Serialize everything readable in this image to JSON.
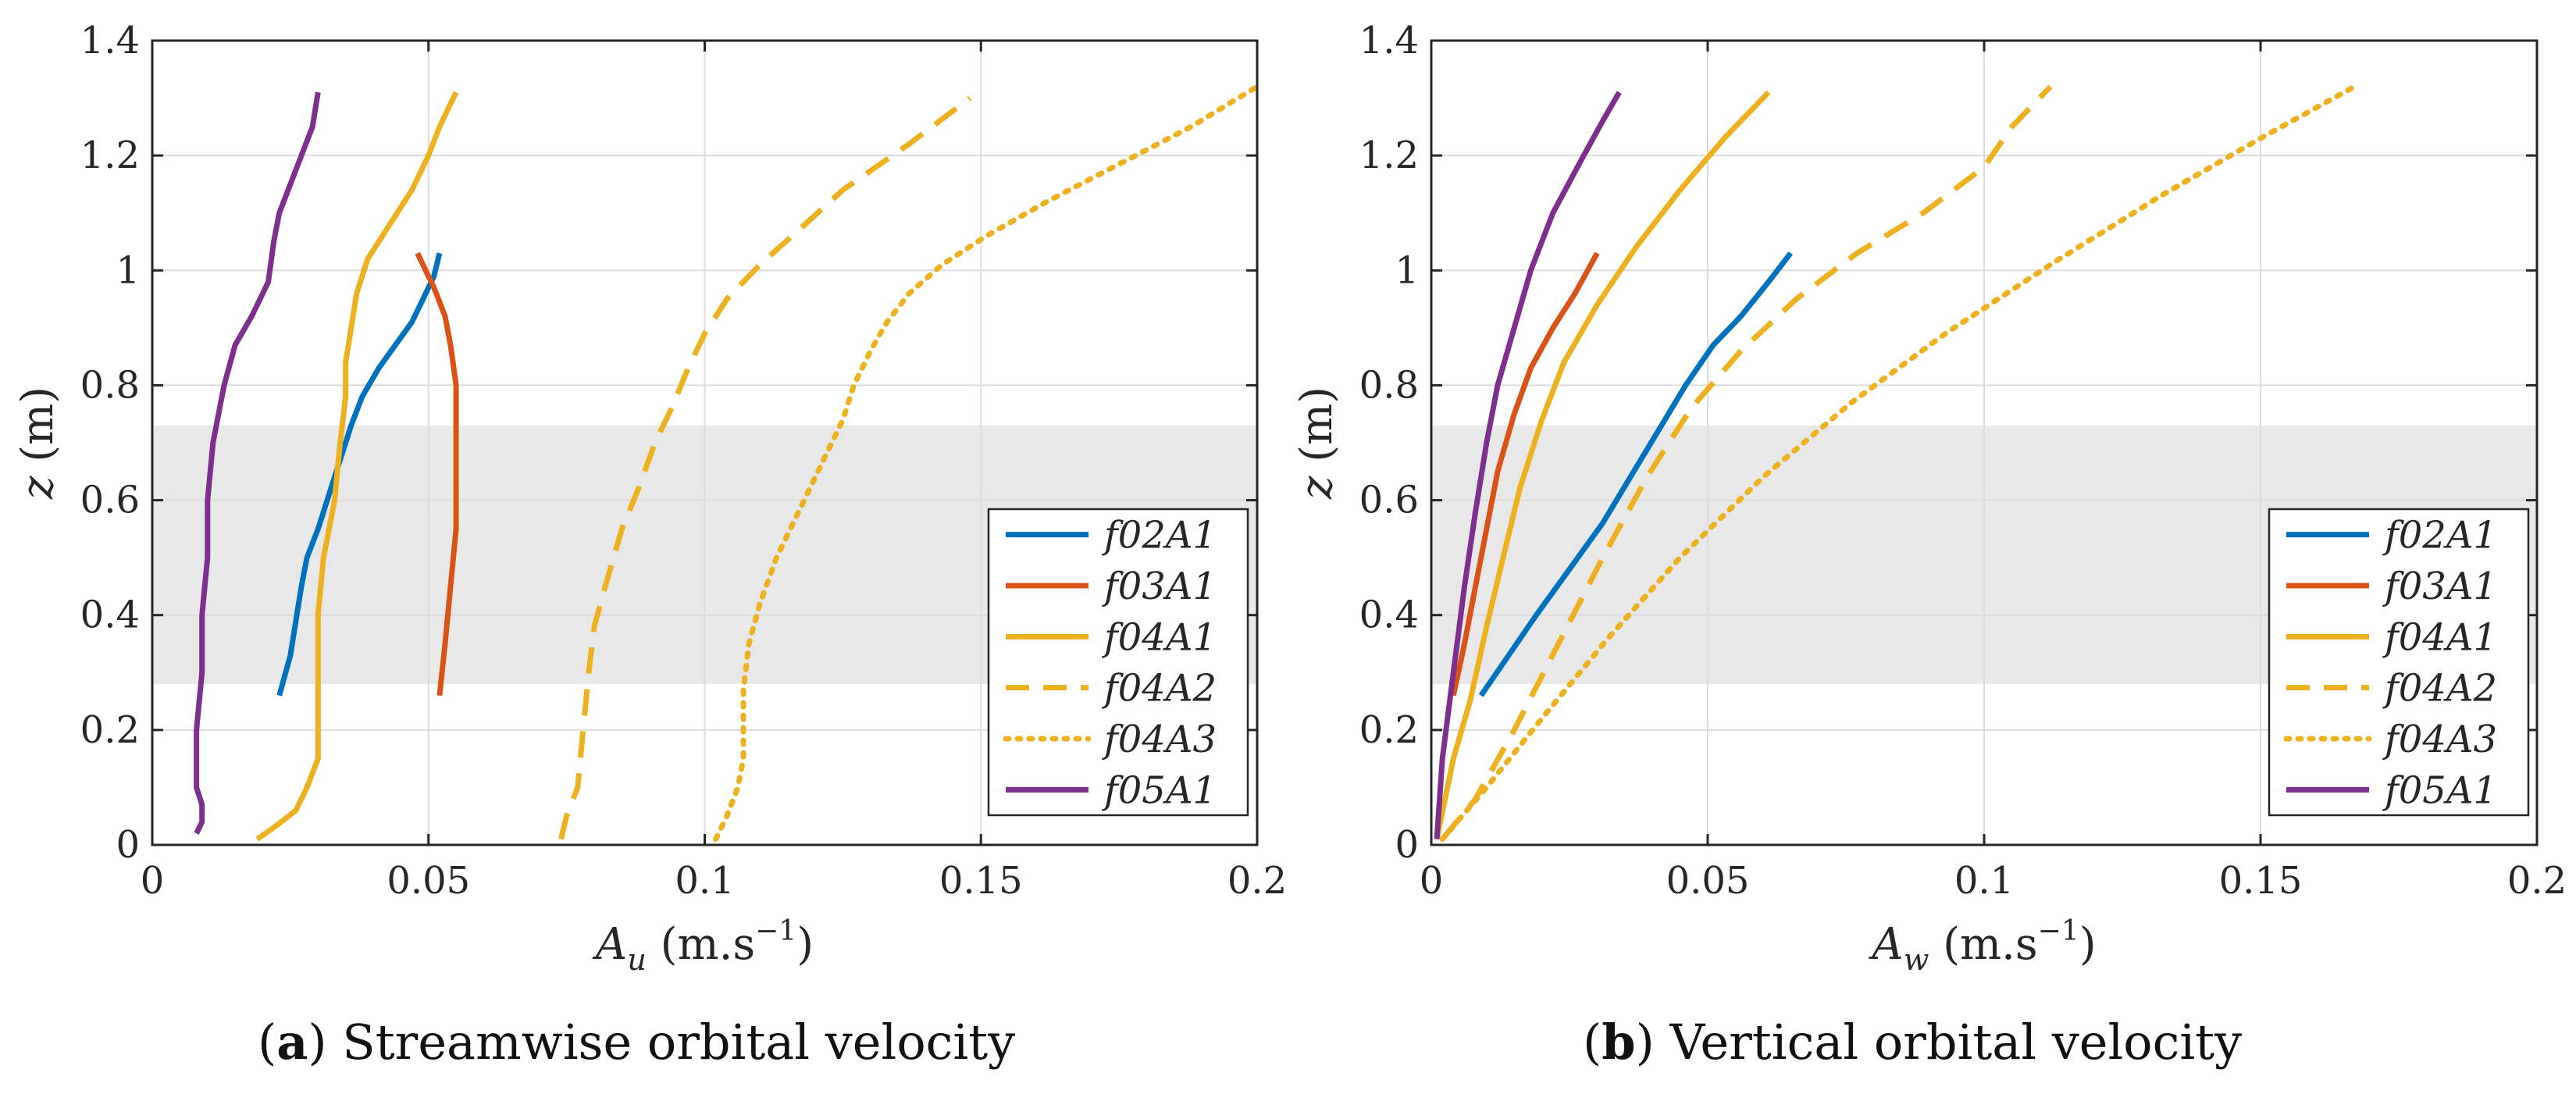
{
  "captions": [
    {
      "tag": "a",
      "text": "Streamwise orbital velocity"
    },
    {
      "tag": "b",
      "text": "Vertical orbital velocity"
    }
  ],
  "colors": {
    "f02A1": "#0072BD",
    "f03A1": "#D95319",
    "f04A1": "#EDB120",
    "f05A1": "#7E2F8E",
    "shade": "#e8e8e8",
    "grid": "#dcdcdc",
    "axis": "#262626"
  },
  "chart_data": [
    {
      "type": "line",
      "title": "",
      "xlabel": "A_u (m.s^-1)",
      "ylabel": "z (m)",
      "xlim": [
        0,
        0.2
      ],
      "ylim": [
        0,
        1.4
      ],
      "xticks": [
        "0",
        "0.05",
        "0.1",
        "0.15",
        "0.2"
      ],
      "yticks": [
        "0",
        "0.2",
        "0.4",
        "0.6",
        "0.8",
        "1",
        "1.2",
        "1.4"
      ],
      "shaded_band": [
        0.28,
        0.73
      ],
      "grid": true,
      "legend_position": "bottom-right",
      "series": [
        {
          "name": "f02A1",
          "style": "solid",
          "color": "#0072BD",
          "x": [
            0.023,
            0.025,
            0.026,
            0.027,
            0.028,
            0.03,
            0.032,
            0.034,
            0.036,
            0.038,
            0.041,
            0.044,
            0.047,
            0.049,
            0.051,
            0.052
          ],
          "y": [
            0.26,
            0.33,
            0.39,
            0.45,
            0.5,
            0.55,
            0.61,
            0.67,
            0.73,
            0.78,
            0.83,
            0.87,
            0.91,
            0.95,
            0.99,
            1.03
          ]
        },
        {
          "name": "f03A1",
          "style": "solid",
          "color": "#D95319",
          "x": [
            0.052,
            0.053,
            0.054,
            0.055,
            0.055,
            0.055,
            0.055,
            0.055,
            0.054,
            0.053,
            0.051,
            0.048
          ],
          "y": [
            0.26,
            0.35,
            0.45,
            0.55,
            0.6,
            0.65,
            0.72,
            0.8,
            0.87,
            0.92,
            0.97,
            1.03
          ]
        },
        {
          "name": "f04A1",
          "style": "solid",
          "color": "#EDB120",
          "x": [
            0.019,
            0.022,
            0.026,
            0.028,
            0.03,
            0.03,
            0.03,
            0.03,
            0.031,
            0.032,
            0.033,
            0.034,
            0.035,
            0.035,
            0.036,
            0.037,
            0.039,
            0.043,
            0.047,
            0.05,
            0.052,
            0.055
          ],
          "y": [
            0.01,
            0.03,
            0.06,
            0.1,
            0.15,
            0.2,
            0.3,
            0.4,
            0.5,
            0.55,
            0.6,
            0.7,
            0.78,
            0.84,
            0.9,
            0.96,
            1.02,
            1.08,
            1.14,
            1.2,
            1.25,
            1.31
          ]
        },
        {
          "name": "f04A2",
          "style": "dashed",
          "color": "#EDB120",
          "x": [
            0.074,
            0.075,
            0.077,
            0.078,
            0.079,
            0.08,
            0.082,
            0.085,
            0.088,
            0.091,
            0.094,
            0.097,
            0.1,
            0.104,
            0.11,
            0.117,
            0.125,
            0.137,
            0.148
          ],
          "y": [
            0.01,
            0.05,
            0.1,
            0.2,
            0.3,
            0.38,
            0.45,
            0.55,
            0.62,
            0.7,
            0.76,
            0.83,
            0.89,
            0.95,
            1.01,
            1.07,
            1.14,
            1.22,
            1.3
          ]
        },
        {
          "name": "f04A3",
          "style": "dotted",
          "color": "#EDB120",
          "x": [
            0.102,
            0.104,
            0.106,
            0.107,
            0.107,
            0.107,
            0.108,
            0.11,
            0.113,
            0.116,
            0.119,
            0.122,
            0.125,
            0.127,
            0.13,
            0.133,
            0.137,
            0.143,
            0.151,
            0.162,
            0.174,
            0.188,
            0.2
          ],
          "y": [
            0.01,
            0.05,
            0.1,
            0.15,
            0.2,
            0.27,
            0.35,
            0.42,
            0.5,
            0.56,
            0.62,
            0.68,
            0.74,
            0.8,
            0.86,
            0.91,
            0.96,
            1.01,
            1.06,
            1.12,
            1.18,
            1.25,
            1.32
          ]
        },
        {
          "name": "f05A1",
          "style": "solid",
          "color": "#7E2F8E",
          "x": [
            0.008,
            0.009,
            0.009,
            0.008,
            0.008,
            0.008,
            0.009,
            0.009,
            0.01,
            0.01,
            0.011,
            0.013,
            0.015,
            0.018,
            0.021,
            0.022,
            0.023,
            0.025,
            0.027,
            0.029,
            0.03
          ],
          "y": [
            0.02,
            0.04,
            0.07,
            0.1,
            0.15,
            0.2,
            0.3,
            0.4,
            0.5,
            0.6,
            0.7,
            0.8,
            0.87,
            0.92,
            0.98,
            1.05,
            1.1,
            1.15,
            1.2,
            1.25,
            1.31
          ]
        }
      ]
    },
    {
      "type": "line",
      "title": "",
      "xlabel": "A_w (m.s^-1)",
      "ylabel": "z (m)",
      "xlim": [
        0,
        0.2
      ],
      "ylim": [
        0,
        1.4
      ],
      "xticks": [
        "0",
        "0.05",
        "0.1",
        "0.15",
        "0.2"
      ],
      "yticks": [
        "0",
        "0.2",
        "0.4",
        "0.6",
        "0.8",
        "1",
        "1.2",
        "1.4"
      ],
      "shaded_band": [
        0.28,
        0.73
      ],
      "grid": true,
      "legend_position": "bottom-right",
      "series": [
        {
          "name": "f02A1",
          "style": "solid",
          "color": "#0072BD",
          "x": [
            0.009,
            0.014,
            0.019,
            0.025,
            0.031,
            0.036,
            0.041,
            0.046,
            0.051,
            0.056,
            0.061,
            0.065
          ],
          "y": [
            0.26,
            0.33,
            0.4,
            0.48,
            0.56,
            0.64,
            0.72,
            0.8,
            0.87,
            0.92,
            0.98,
            1.03
          ]
        },
        {
          "name": "f03A1",
          "style": "solid",
          "color": "#D95319",
          "x": [
            0.004,
            0.006,
            0.008,
            0.01,
            0.012,
            0.015,
            0.018,
            0.022,
            0.026,
            0.03
          ],
          "y": [
            0.26,
            0.35,
            0.45,
            0.55,
            0.65,
            0.75,
            0.83,
            0.9,
            0.96,
            1.03
          ]
        },
        {
          "name": "f04A1",
          "style": "solid",
          "color": "#EDB120",
          "x": [
            0.001,
            0.004,
            0.007,
            0.01,
            0.013,
            0.016,
            0.02,
            0.024,
            0.03,
            0.037,
            0.045,
            0.053,
            0.061
          ],
          "y": [
            0.01,
            0.15,
            0.25,
            0.38,
            0.5,
            0.62,
            0.74,
            0.84,
            0.94,
            1.04,
            1.14,
            1.23,
            1.31
          ]
        },
        {
          "name": "f04A2",
          "style": "dashed",
          "color": "#EDB120",
          "x": [
            0.002,
            0.008,
            0.015,
            0.023,
            0.031,
            0.039,
            0.047,
            0.056,
            0.066,
            0.077,
            0.089,
            0.1,
            0.105,
            0.112
          ],
          "y": [
            0.01,
            0.08,
            0.2,
            0.35,
            0.5,
            0.64,
            0.76,
            0.86,
            0.95,
            1.03,
            1.1,
            1.18,
            1.25,
            1.32
          ]
        },
        {
          "name": "f04A3",
          "style": "dotted",
          "color": "#EDB120",
          "x": [
            0.002,
            0.01,
            0.02,
            0.032,
            0.045,
            0.06,
            0.076,
            0.093,
            0.112,
            0.132,
            0.15,
            0.167
          ],
          "y": [
            0.01,
            0.1,
            0.22,
            0.36,
            0.5,
            0.64,
            0.77,
            0.89,
            1.01,
            1.13,
            1.23,
            1.32
          ]
        },
        {
          "name": "f05A1",
          "style": "solid",
          "color": "#7E2F8E",
          "x": [
            0.001,
            0.002,
            0.004,
            0.006,
            0.008,
            0.01,
            0.012,
            0.015,
            0.018,
            0.022,
            0.027,
            0.031,
            0.034
          ],
          "y": [
            0.01,
            0.15,
            0.3,
            0.45,
            0.58,
            0.7,
            0.8,
            0.9,
            1.0,
            1.1,
            1.19,
            1.26,
            1.31
          ]
        }
      ]
    }
  ]
}
